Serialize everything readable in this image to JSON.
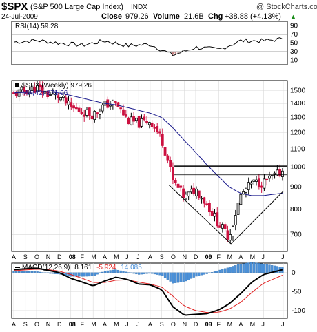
{
  "header": {
    "symbol": "$SPX",
    "name": "(S&P 500 Large Cap Index)",
    "exchange": "INDX",
    "watermark": "@ StockCharts.com",
    "date": "24-Jul-2009",
    "close_label": "Close",
    "close_value": "979.26",
    "volume_label": "Volume",
    "volume_value": "21.6B",
    "chg_label": "Chg",
    "chg_value": "+38.88 (+4.13%)",
    "chg_arrow": "▲"
  },
  "colors": {
    "up": "#000000",
    "down": "#cc1140",
    "ma": "#1a1a8c",
    "macd_hist": "#4a90d9",
    "macd_signal": "#e02020",
    "rsi_fill": "#c08080",
    "grid": "#d8d8d8"
  },
  "chart_data": [
    {
      "type": "line",
      "panel": "RSI",
      "legend": "RSI(14) 59.28",
      "yticks": [
        90,
        70,
        50,
        30,
        10
      ],
      "ylim": [
        0,
        100
      ],
      "reference_lines": [
        70,
        50,
        30
      ],
      "x": [
        "2007-08-01",
        "2007-10-01",
        "2007-12-01",
        "2008-02-01",
        "2008-04-01",
        "2008-06-01",
        "2008-08-01",
        "2008-10-01",
        "2008-12-01",
        "2009-02-01",
        "2009-04-01",
        "2009-06-01",
        "2009-07-24"
      ],
      "values": [
        52,
        56,
        50,
        45,
        55,
        44,
        47,
        22,
        40,
        35,
        55,
        55,
        59.28
      ]
    },
    {
      "type": "candlestick",
      "panel": "price",
      "legend_price": "$SPX (Weekly) 979.26",
      "legend_ma": "MA(42) 871.66",
      "scale": "log",
      "yticks": [
        1500,
        1400,
        1300,
        1200,
        1100,
        1000,
        900,
        800,
        700
      ],
      "ylim": [
        640,
        1580
      ],
      "xlabels": [
        "A",
        "S",
        "O",
        "N",
        "D",
        "08",
        "F",
        "M",
        "A",
        "M",
        "J",
        "J",
        "A",
        "S",
        "O",
        "N",
        "D",
        "09",
        "F",
        "M",
        "A",
        "M",
        "J",
        "J"
      ],
      "x": [
        "2007-08-01",
        "2007-09-01",
        "2007-10-01",
        "2007-11-01",
        "2007-12-01",
        "2008-01-01",
        "2008-02-01",
        "2008-03-01",
        "2008-04-01",
        "2008-05-01",
        "2008-06-01",
        "2008-07-01",
        "2008-08-01",
        "2008-09-01",
        "2008-10-01",
        "2008-11-01",
        "2008-12-01",
        "2009-01-01",
        "2009-02-01",
        "2009-03-01",
        "2009-04-01",
        "2009-05-01",
        "2009-06-01",
        "2009-07-24"
      ],
      "close": [
        1470,
        1500,
        1520,
        1470,
        1450,
        1370,
        1340,
        1320,
        1390,
        1400,
        1280,
        1260,
        1280,
        1160,
        930,
        850,
        890,
        820,
        740,
        690,
        860,
        920,
        920,
        979.26
      ],
      "ma": [
        1480,
        1485,
        1490,
        1490,
        1480,
        1460,
        1440,
        1420,
        1400,
        1390,
        1370,
        1350,
        1330,
        1300,
        1230,
        1150,
        1080,
        1010,
        950,
        900,
        870,
        860,
        860,
        871.66
      ],
      "horizontal_lines": [
        1005,
        960
      ],
      "triangle": {
        "apex_x": "2009-03-06",
        "apex_y": 666,
        "left_x": "2008-09-20",
        "left_y": 910,
        "right_x": "2009-07-24",
        "right_y": 880
      }
    },
    {
      "type": "line",
      "panel": "MACD",
      "legend_macd": "MACD(12,26,9)",
      "legend_macd_value": "8.161",
      "legend_signal_value": "-5.924",
      "legend_hist_value": "14.085",
      "yticks": [
        0,
        -50,
        -100
      ],
      "ylim": [
        -120,
        25
      ],
      "xlabels": [
        "A",
        "S",
        "O",
        "N",
        "D",
        "08",
        "F",
        "M",
        "A",
        "M",
        "J",
        "J",
        "A",
        "S",
        "O",
        "N",
        "D",
        "09",
        "F",
        "M",
        "A",
        "M",
        "J",
        "J"
      ],
      "x": [
        "2007-08-01",
        "2007-09-01",
        "2007-10-01",
        "2007-11-01",
        "2007-12-01",
        "2008-01-01",
        "2008-02-01",
        "2008-03-01",
        "2008-04-01",
        "2008-05-01",
        "2008-06-01",
        "2008-07-01",
        "2008-08-01",
        "2008-09-01",
        "2008-10-01",
        "2008-11-01",
        "2008-12-01",
        "2009-01-01",
        "2009-02-01",
        "2009-03-01",
        "2009-04-01",
        "2009-05-01",
        "2009-06-01",
        "2009-07-24"
      ],
      "series": [
        {
          "name": "MACD",
          "values": [
            8,
            10,
            12,
            6,
            0,
            -15,
            -25,
            -35,
            -22,
            -12,
            -18,
            -30,
            -32,
            -45,
            -90,
            -112,
            -110,
            -108,
            -98,
            -82,
            -55,
            -25,
            -5,
            8.161
          ]
        },
        {
          "name": "Signal",
          "values": [
            5,
            7,
            9,
            8,
            4,
            -5,
            -15,
            -26,
            -26,
            -20,
            -19,
            -25,
            -30,
            -38,
            -62,
            -88,
            -100,
            -105,
            -104,
            -96,
            -78,
            -52,
            -28,
            -5.924
          ]
        },
        {
          "name": "Histogram",
          "values": [
            3,
            3,
            3,
            -2,
            -4,
            -10,
            -10,
            -9,
            4,
            8,
            1,
            -5,
            -2,
            -7,
            -28,
            -24,
            -10,
            -3,
            6,
            14,
            23,
            27,
            23,
            14.085
          ]
        }
      ]
    }
  ]
}
